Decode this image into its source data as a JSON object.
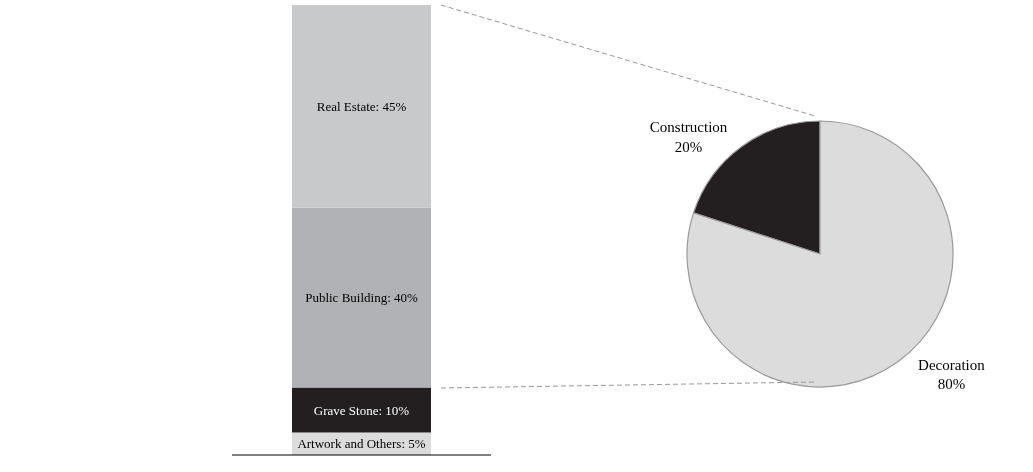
{
  "chart_data": [
    {
      "type": "bar",
      "stacked": true,
      "categories": [
        null
      ],
      "series": [
        {
          "color": "#dcdcdd",
          "values": [
            5
          ],
          "value_labels": [
            "Artwork and Others: 5%"
          ]
        },
        {
          "color": "#231f20",
          "values": [
            10
          ],
          "value_labels": [
            "Grave Stone: 10%"
          ]
        },
        {
          "color": "#b1b2b5",
          "values": [
            40
          ],
          "value_labels": [
            "Public Building: 40%"
          ]
        },
        {
          "color": "#c8c9cb",
          "values": [
            45
          ],
          "value_labels": [
            "Real Estate: 45%"
          ]
        }
      ]
    },
    {
      "type": "pie",
      "categories": [
        "Construction",
        "Decoration"
      ],
      "values": [
        20,
        80
      ],
      "colors": [
        "#231f20",
        "#dcdcdd"
      ],
      "value_labels": [
        "20%",
        "80%"
      ]
    }
  ]
}
